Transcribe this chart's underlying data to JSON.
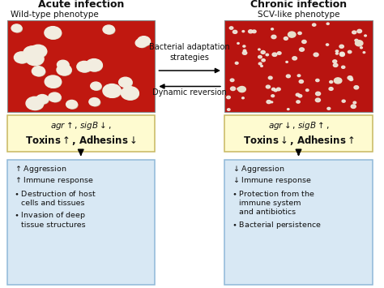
{
  "bg_color": "#ffffff",
  "left_title": "Acute infection",
  "right_title": "Chronic infection",
  "left_subtitle": "Wild-type phenotype",
  "right_subtitle": "SCV-like phenotype",
  "arrow_top_text": "Bacterial adaptation\nstrategies",
  "arrow_bottom_text": "Dynamic reversion",
  "yellow_box_color": "#fefbd0",
  "blue_box_color": "#d8e8f4",
  "yellow_box_border": "#c8b860",
  "blue_box_border": "#90b8d8",
  "text_color": "#111111",
  "left_plate_color": "#c01810",
  "right_plate_color": "#b81410"
}
